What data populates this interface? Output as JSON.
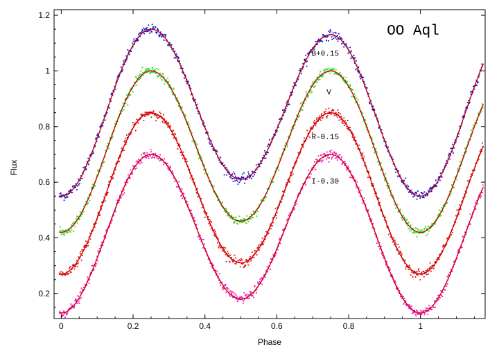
{
  "chart_data": {
    "type": "scatter",
    "title": "OO Aql",
    "xlabel": "Phase",
    "ylabel": "Flux",
    "xlim": [
      -0.02,
      1.18
    ],
    "ylim": [
      0.11,
      1.22
    ],
    "xticks": [
      0,
      0.2,
      0.4,
      0.6,
      0.8,
      1
    ],
    "xtick_labels": [
      "0",
      "0.2",
      "0.4",
      "0.6",
      "0.8",
      "1"
    ],
    "yticks": [
      0.2,
      0.4,
      0.6,
      0.8,
      1,
      1.2
    ],
    "ytick_labels": [
      "0.2",
      "0.4",
      "0.6",
      "0.8",
      "1",
      "1.2"
    ],
    "grid": false,
    "model_color": "#cc0000",
    "series": [
      {
        "name": "B+0.15",
        "color": "#1010cc",
        "offset": 0.15,
        "label_at": [
          0.735,
          1.055
        ],
        "phase_max1": 0.25,
        "max1": 1.15,
        "phase_min1": 0.5,
        "min1": 0.61,
        "phase_max2": 0.75,
        "max2": 1.13,
        "phase_min2": 1.0,
        "min2": 0.55
      },
      {
        "name": "V",
        "color": "#22dd22",
        "offset": 0.0,
        "label_at": [
          0.745,
          0.915
        ],
        "phase_max1": 0.25,
        "max1": 1.0,
        "phase_min1": 0.5,
        "min1": 0.46,
        "phase_max2": 0.75,
        "max2": 1.0,
        "phase_min2": 1.0,
        "min2": 0.42
      },
      {
        "name": "R-0.15",
        "color": "#dd1111",
        "offset": -0.15,
        "label_at": [
          0.735,
          0.755
        ],
        "phase_max1": 0.25,
        "max1": 0.85,
        "phase_min1": 0.5,
        "min1": 0.31,
        "phase_max2": 0.75,
        "max2": 0.85,
        "phase_min2": 1.0,
        "min2": 0.27
      },
      {
        "name": "I-0.30",
        "color": "#ee11bb",
        "offset": -0.3,
        "label_at": [
          0.735,
          0.595
        ],
        "phase_max1": 0.25,
        "max1": 0.7,
        "phase_min1": 0.5,
        "min1": 0.18,
        "phase_max2": 0.75,
        "max2": 0.7,
        "phase_min2": 1.0,
        "min2": 0.13
      }
    ]
  }
}
